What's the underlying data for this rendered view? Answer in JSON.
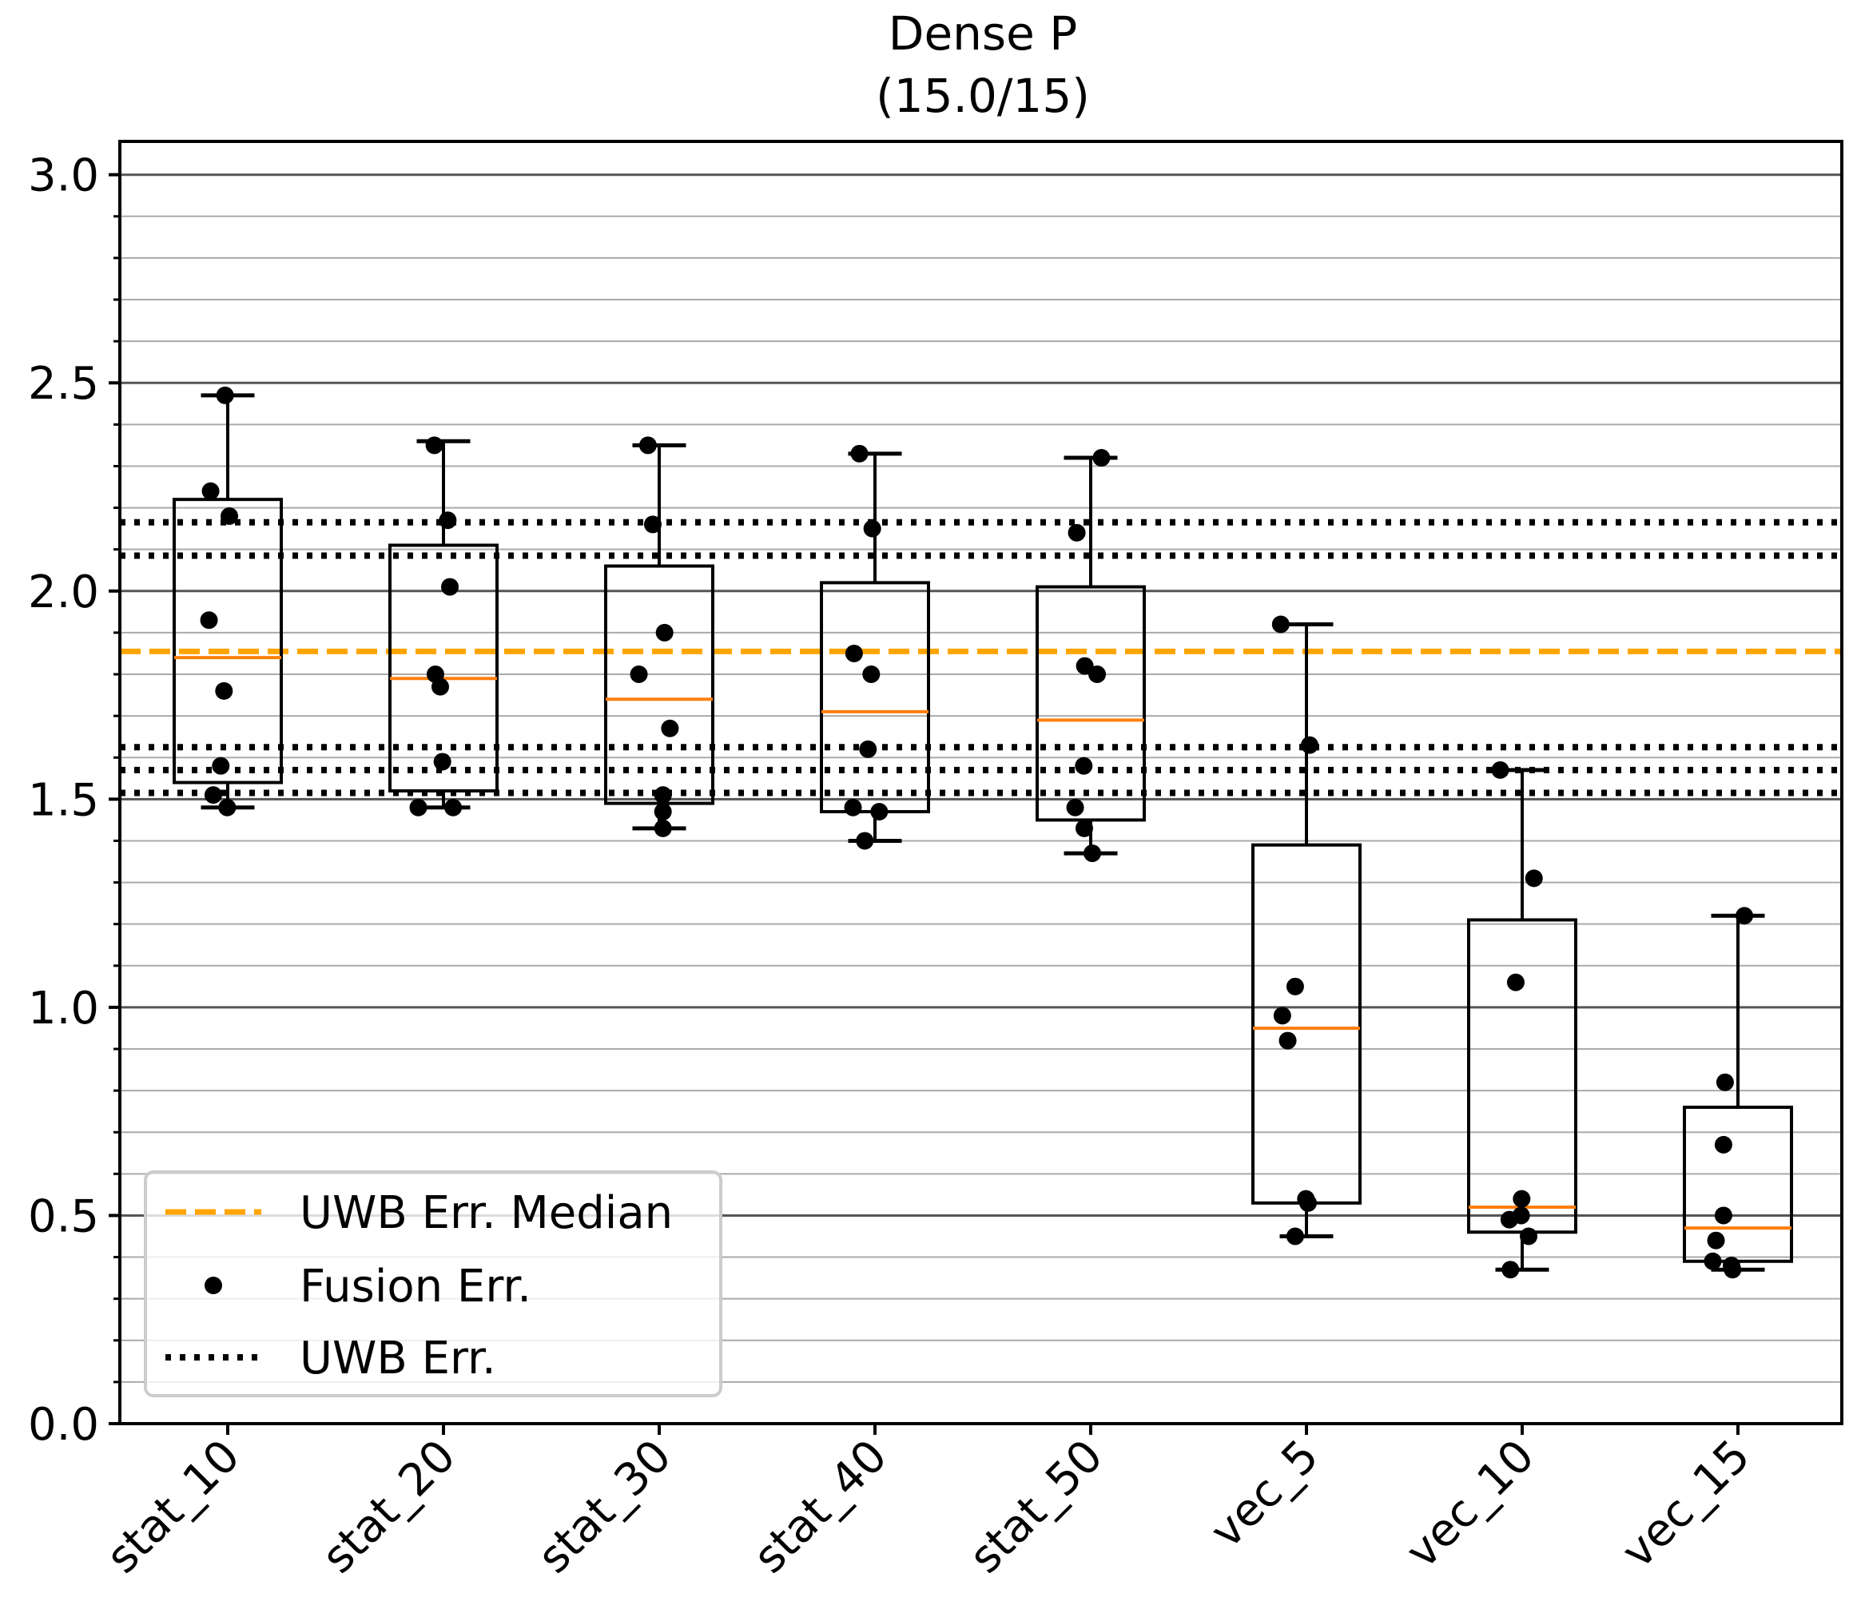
{
  "chart_data": {
    "type": "box",
    "title": "Dense P",
    "subtitle": "(15.0/15)",
    "xlabel": "",
    "ylabel": "",
    "ylim": [
      0,
      3.08
    ],
    "y_ticks": [
      0.0,
      0.5,
      1.0,
      1.5,
      2.0,
      2.5,
      3.0
    ],
    "y_tick_labels": [
      "0.0",
      "0.5",
      "1.0",
      "1.5",
      "2.0",
      "2.5",
      "3.0"
    ],
    "y_minor_step": 0.1,
    "grid": "horizontal major and minor",
    "categories": [
      "stat_10",
      "stat_20",
      "stat_30",
      "stat_40",
      "stat_50",
      "vec_5",
      "vec_10",
      "vec_15"
    ],
    "boxes": [
      {
        "whisker_low": 1.48,
        "q1": 1.54,
        "median": 1.84,
        "q3": 2.22,
        "whisker_high": 2.47
      },
      {
        "whisker_low": 1.48,
        "q1": 1.52,
        "median": 1.79,
        "q3": 2.11,
        "whisker_high": 2.36
      },
      {
        "whisker_low": 1.43,
        "q1": 1.49,
        "median": 1.74,
        "q3": 2.06,
        "whisker_high": 2.35
      },
      {
        "whisker_low": 1.4,
        "q1": 1.47,
        "median": 1.71,
        "q3": 2.02,
        "whisker_high": 2.33
      },
      {
        "whisker_low": 1.37,
        "q1": 1.45,
        "median": 1.69,
        "q3": 2.01,
        "whisker_high": 2.32
      },
      {
        "whisker_low": 0.45,
        "q1": 0.53,
        "median": 0.95,
        "q3": 1.39,
        "whisker_high": 1.92
      },
      {
        "whisker_low": 0.37,
        "q1": 0.46,
        "median": 0.52,
        "q3": 1.21,
        "whisker_high": 1.57
      },
      {
        "whisker_low": 0.37,
        "q1": 0.39,
        "median": 0.47,
        "q3": 0.76,
        "whisker_high": 1.22
      }
    ],
    "points": [
      [
        2.47,
        2.24,
        2.18,
        1.93,
        1.76,
        1.58,
        1.51,
        1.48
      ],
      [
        2.35,
        2.17,
        2.01,
        1.8,
        1.77,
        1.59,
        1.48,
        1.48
      ],
      [
        2.35,
        2.16,
        1.9,
        1.8,
        1.67,
        1.51,
        1.47,
        1.43
      ],
      [
        2.33,
        2.15,
        1.85,
        1.8,
        1.62,
        1.48,
        1.47,
        1.4
      ],
      [
        2.32,
        2.14,
        1.82,
        1.8,
        1.58,
        1.48,
        1.43,
        1.37
      ],
      [
        1.92,
        1.63,
        1.05,
        0.98,
        0.92,
        0.54,
        0.53,
        0.45
      ],
      [
        1.57,
        1.31,
        1.06,
        0.54,
        0.5,
        0.49,
        0.45,
        0.37
      ],
      [
        1.22,
        0.82,
        0.67,
        0.5,
        0.44,
        0.39,
        0.38,
        0.37
      ]
    ],
    "point_jitter": [
      [
        -0.05,
        -0.32,
        0.03,
        -0.35,
        -0.07,
        -0.13,
        -0.27,
        -0.01
      ],
      [
        -0.17,
        0.08,
        0.12,
        -0.15,
        -0.06,
        -0.02,
        0.18,
        -0.47
      ],
      [
        -0.21,
        -0.12,
        0.1,
        -0.38,
        0.2,
        0.07,
        0.07,
        0.07
      ],
      [
        -0.29,
        -0.05,
        -0.39,
        -0.07,
        -0.13,
        -0.41,
        0.08,
        -0.19
      ],
      [
        0.2,
        -0.26,
        -0.11,
        0.12,
        -0.13,
        -0.29,
        -0.12,
        0.03
      ],
      [
        -0.48,
        0.06,
        -0.21,
        -0.45,
        -0.35,
        -0.01,
        0.03,
        -0.21
      ],
      [
        -0.41,
        0.22,
        -0.12,
        -0.01,
        -0.02,
        -0.24,
        0.12,
        -0.22
      ],
      [
        0.12,
        -0.24,
        -0.27,
        -0.27,
        -0.41,
        -0.47,
        -0.12,
        -0.1
      ]
    ],
    "reference_lines": {
      "uwb_median": 1.855,
      "uwb_err": [
        2.165,
        2.085,
        1.625,
        1.57,
        1.515
      ]
    },
    "legend": {
      "position": "lower-left",
      "entries": [
        {
          "label": "UWB Err. Median",
          "style": "dashed",
          "color": "#ffa500"
        },
        {
          "label": "Fusion Err.",
          "style": "point",
          "color": "#000000"
        },
        {
          "label": "UWB Err.",
          "style": "dotted",
          "color": "#000000"
        }
      ]
    },
    "colors": {
      "box": "#000000",
      "median": "#ff7f0e",
      "uwb_median": "#ffa500",
      "points": "#000000",
      "grid_major": "#555555",
      "grid_minor": "#aaaaaa"
    }
  }
}
